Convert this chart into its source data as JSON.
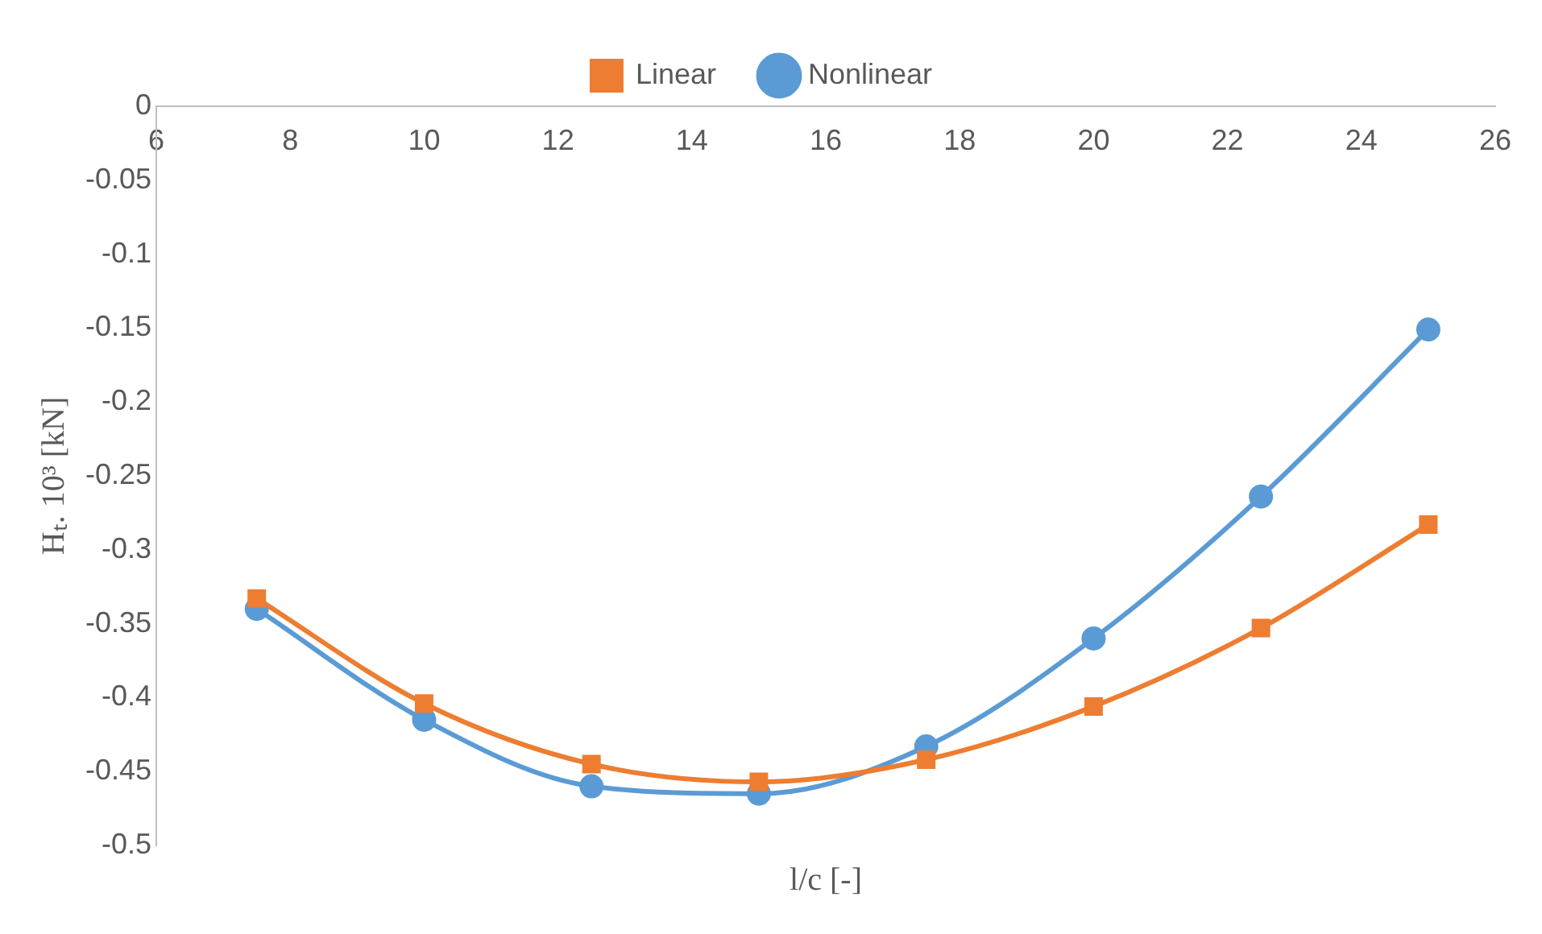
{
  "chart_data": {
    "type": "line",
    "xlabel": "l/c [-]",
    "ylabel": "Hₜ. 10³ [kN]",
    "x": [
      7.5,
      10,
      12.5,
      15,
      17.5,
      20,
      22.5,
      25
    ],
    "series": [
      {
        "name": "Nonlinear",
        "color": "#5b9bd5",
        "marker": "circle",
        "values": [
          -0.34,
          -0.415,
          -0.46,
          -0.465,
          -0.433,
          -0.36,
          -0.264,
          -0.151
        ]
      },
      {
        "name": "Linear",
        "color": "#ed7d31",
        "marker": "square",
        "values": [
          -0.333,
          -0.404,
          -0.445,
          -0.457,
          -0.442,
          -0.406,
          -0.353,
          -0.283
        ]
      }
    ],
    "xlim": [
      6,
      26
    ],
    "xticks": [
      6,
      8,
      10,
      12,
      14,
      16,
      18,
      20,
      22,
      24,
      26
    ],
    "ylim": [
      -0.5,
      0
    ],
    "yticks": [
      0,
      -0.05,
      -0.1,
      -0.15,
      -0.2,
      -0.25,
      -0.3,
      -0.35,
      -0.4,
      -0.45,
      -0.5
    ],
    "grid": false,
    "legend": "top"
  }
}
